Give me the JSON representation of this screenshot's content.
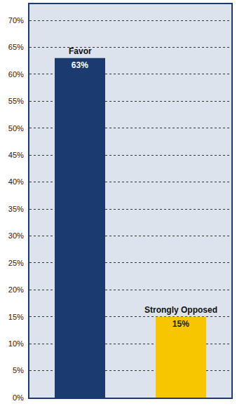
{
  "chart_data": {
    "type": "bar",
    "categories": [
      "Favor",
      "Strongly Opposed"
    ],
    "values": [
      63,
      15
    ],
    "value_labels": [
      "63%",
      "15%"
    ],
    "data_labels": true,
    "colors": [
      "#1b3a6f",
      "#f7c600"
    ],
    "ylim": [
      0,
      73
    ],
    "yticks": [
      {
        "value": 0,
        "label": "0%"
      },
      {
        "value": 5,
        "label": "5%"
      },
      {
        "value": 10,
        "label": "10%"
      },
      {
        "value": 15,
        "label": "15%"
      },
      {
        "value": 20,
        "label": "20%"
      },
      {
        "value": 25,
        "label": "25%"
      },
      {
        "value": 30,
        "label": "30%"
      },
      {
        "value": 35,
        "label": "35%"
      },
      {
        "value": 40,
        "label": "40%"
      },
      {
        "value": 45,
        "label": "45%"
      },
      {
        "value": 50,
        "label": "50%"
      },
      {
        "value": 55,
        "label": "55%"
      },
      {
        "value": 60,
        "label": "60%"
      },
      {
        "value": 65,
        "label": "65%"
      },
      {
        "value": 70,
        "label": "70%"
      }
    ],
    "grid": true,
    "tick_labels": "y"
  }
}
